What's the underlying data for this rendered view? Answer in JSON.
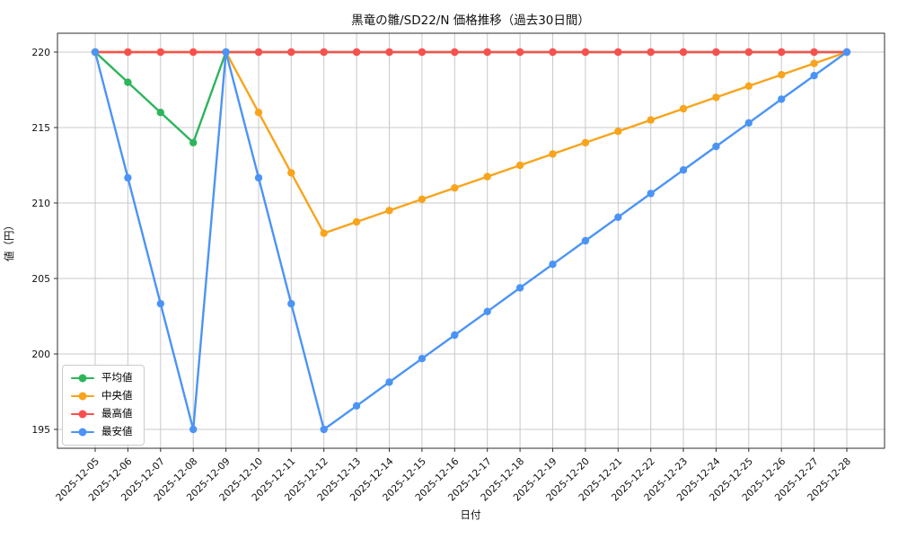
{
  "chart_data": {
    "type": "line",
    "title": "黒竜の雛/SD22/N 価格推移（過去30日間）",
    "xlabel": "日付",
    "ylabel": "値（円）",
    "categories": [
      "2025-12-05",
      "2025-12-06",
      "2025-12-07",
      "2025-12-08",
      "2025-12-09",
      "2025-12-10",
      "2025-12-11",
      "2025-12-12",
      "2025-12-13",
      "2025-12-14",
      "2025-12-15",
      "2025-12-16",
      "2025-12-17",
      "2025-12-18",
      "2025-12-19",
      "2025-12-20",
      "2025-12-21",
      "2025-12-22",
      "2025-12-23",
      "2025-12-24",
      "2025-12-25",
      "2025-12-26",
      "2025-12-27",
      "2025-12-28"
    ],
    "series": [
      {
        "key": "average",
        "name": "平均値",
        "color": "#2db55c",
        "values": [
          220,
          218,
          216,
          214,
          220,
          220,
          220,
          220,
          220,
          220,
          220,
          220,
          220,
          220,
          220,
          220,
          220,
          220,
          220,
          220,
          220,
          220,
          220,
          220
        ]
      },
      {
        "key": "median",
        "name": "中央値",
        "color": "#f8a41c",
        "values": [
          220,
          220,
          220,
          220,
          220,
          216,
          212,
          208,
          208.75,
          209.5,
          210.25,
          211,
          211.75,
          212.5,
          213.25,
          214,
          214.75,
          215.5,
          216.25,
          217,
          217.75,
          218.5,
          219.25,
          220
        ]
      },
      {
        "key": "max",
        "name": "最高値",
        "color": "#f9504e",
        "values": [
          220,
          220,
          220,
          220,
          220,
          220,
          220,
          220,
          220,
          220,
          220,
          220,
          220,
          220,
          220,
          220,
          220,
          220,
          220,
          220,
          220,
          220,
          220,
          220
        ]
      },
      {
        "key": "min",
        "name": "最安値",
        "color": "#4b94f6",
        "values": [
          220,
          211.67,
          203.33,
          195,
          220,
          211.67,
          203.33,
          195,
          196.56,
          198.13,
          199.69,
          201.25,
          202.81,
          204.38,
          205.94,
          207.5,
          209.06,
          210.63,
          212.19,
          213.75,
          215.31,
          216.88,
          218.44,
          220
        ]
      }
    ],
    "y_ticks": [
      195,
      200,
      205,
      210,
      215,
      220
    ],
    "ylim": [
      193.75,
      221.25
    ],
    "grid": true,
    "legend_position": "lower-left",
    "x_tick_rotation": 45
  },
  "style": {
    "grid_color": "#c9c9c9",
    "spine_color": "#2e2e2e",
    "tick_color": "#2e2e2e",
    "text_color": "#111111",
    "legend_border": "#cbcbcb",
    "legend_bg": "#ffffff",
    "background": "#ffffff"
  }
}
